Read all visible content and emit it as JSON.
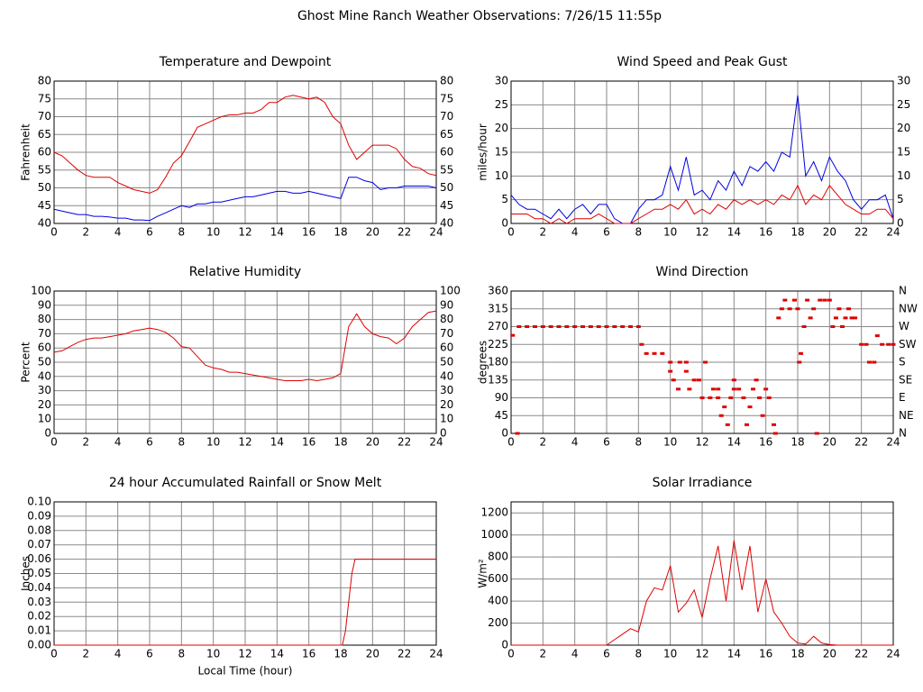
{
  "title": "Ghost Mine Ranch Weather Observations: 7/26/15 11:55p",
  "chart_data": [
    {
      "type": "line",
      "title": "Temperature and Dewpoint",
      "ylabel": "Fahrenheit",
      "xlim": [
        0,
        24
      ],
      "xticks": [
        0,
        2,
        4,
        6,
        8,
        10,
        12,
        14,
        16,
        18,
        20,
        22,
        24
      ],
      "ylim": [
        40,
        80
      ],
      "yticks": [
        40,
        45,
        50,
        55,
        60,
        65,
        70,
        75,
        80
      ],
      "right_axis": true,
      "grid": true,
      "x": [
        0,
        0.5,
        1,
        1.5,
        2,
        2.5,
        3,
        3.5,
        4,
        4.5,
        5,
        5.5,
        6,
        6.5,
        7,
        7.5,
        8,
        8.5,
        9,
        9.5,
        10,
        10.5,
        11,
        11.5,
        12,
        12.5,
        13,
        13.5,
        14,
        14.5,
        15,
        15.5,
        16,
        16.5,
        17,
        17.5,
        18,
        18.5,
        19,
        19.5,
        20,
        20.5,
        21,
        21.5,
        22,
        22.5,
        23,
        23.5,
        24
      ],
      "series": [
        {
          "color": "#e00000",
          "values": [
            60,
            59,
            57,
            55,
            53.5,
            53,
            53,
            53,
            51.5,
            50.5,
            49.5,
            49,
            48.5,
            49.5,
            53,
            57,
            59,
            63,
            67,
            68,
            69,
            70,
            70.5,
            70.5,
            71,
            71,
            72,
            74,
            74,
            75.5,
            76,
            75.5,
            75,
            75.5,
            74,
            70,
            68,
            62,
            58,
            60,
            62,
            62,
            62,
            61,
            58,
            56,
            55.5,
            54,
            53.5
          ]
        },
        {
          "color": "#0000e0",
          "values": [
            44,
            43.5,
            43,
            42.5,
            42.5,
            42,
            42,
            41.8,
            41.5,
            41.5,
            41,
            41,
            40.8,
            42,
            43,
            44,
            45,
            44.5,
            45.5,
            45.5,
            46,
            46,
            46.5,
            47,
            47.5,
            47.5,
            48,
            48.5,
            49,
            49,
            48.5,
            48.5,
            49,
            48.5,
            48,
            47.5,
            47,
            53,
            53,
            52,
            51.5,
            49.5,
            50,
            50,
            50.5,
            50.5,
            50.5,
            50.5,
            50
          ]
        }
      ]
    },
    {
      "type": "line",
      "title": "Wind Speed and Peak Gust",
      "ylabel": "miles/hour",
      "xlim": [
        0,
        24
      ],
      "xticks": [
        0,
        2,
        4,
        6,
        8,
        10,
        12,
        14,
        16,
        18,
        20,
        22,
        24
      ],
      "ylim": [
        0,
        30
      ],
      "yticks": [
        0,
        5,
        10,
        15,
        20,
        25,
        30
      ],
      "right_axis": true,
      "grid": true,
      "x": [
        0,
        0.5,
        1,
        1.5,
        2,
        2.5,
        3,
        3.5,
        4,
        4.5,
        5,
        5.5,
        6,
        6.5,
        7,
        7.5,
        8,
        8.5,
        9,
        9.5,
        10,
        10.5,
        11,
        11.5,
        12,
        12.5,
        13,
        13.5,
        14,
        14.5,
        15,
        15.5,
        16,
        16.5,
        17,
        17.5,
        18,
        18.5,
        19,
        19.5,
        20,
        20.5,
        21,
        21.5,
        22,
        22.5,
        23,
        23.5,
        24
      ],
      "series": [
        {
          "color": "#0000e0",
          "values": [
            6,
            4,
            3,
            3,
            2,
            1,
            3,
            1,
            3,
            4,
            2,
            4,
            4,
            1,
            0,
            0,
            3,
            5,
            5,
            6,
            12,
            7,
            14,
            6,
            7,
            5,
            9,
            7,
            11,
            8,
            12,
            11,
            13,
            11,
            15,
            14,
            27,
            10,
            13,
            9,
            14,
            11,
            9,
            5,
            3,
            5,
            5,
            6,
            1
          ]
        },
        {
          "color": "#e00000",
          "values": [
            2,
            2,
            2,
            1,
            1,
            0,
            1,
            0,
            1,
            1,
            1,
            2,
            1,
            0,
            0,
            0,
            1,
            2,
            3,
            3,
            4,
            3,
            5,
            2,
            3,
            2,
            4,
            3,
            5,
            4,
            5,
            4,
            5,
            4,
            6,
            5,
            8,
            4,
            6,
            5,
            8,
            6,
            4,
            3,
            2,
            2,
            3,
            3,
            1
          ]
        }
      ]
    },
    {
      "type": "line",
      "title": "Relative Humidity",
      "ylabel": "Percent",
      "xlim": [
        0,
        24
      ],
      "xticks": [
        0,
        2,
        4,
        6,
        8,
        10,
        12,
        14,
        16,
        18,
        20,
        22,
        24
      ],
      "ylim": [
        0,
        100
      ],
      "yticks": [
        0,
        10,
        20,
        30,
        40,
        50,
        60,
        70,
        80,
        90,
        100
      ],
      "right_axis": true,
      "grid": true,
      "x": [
        0,
        0.5,
        1,
        1.5,
        2,
        2.5,
        3,
        3.5,
        4,
        4.5,
        5,
        5.5,
        6,
        6.5,
        7,
        7.5,
        8,
        8.5,
        9,
        9.5,
        10,
        10.5,
        11,
        11.5,
        12,
        12.5,
        13,
        13.5,
        14,
        14.5,
        15,
        15.5,
        16,
        16.5,
        17,
        17.5,
        18,
        18.5,
        19,
        19.5,
        20,
        20.5,
        21,
        21.5,
        22,
        22.5,
        23,
        23.5,
        24
      ],
      "series": [
        {
          "color": "#e00000",
          "values": [
            57,
            58,
            61,
            64,
            66,
            67,
            67,
            68,
            69,
            70,
            72,
            73,
            74,
            73,
            71,
            67,
            61,
            60,
            54,
            48,
            46,
            45,
            43,
            43,
            42,
            41,
            40,
            39,
            38,
            37,
            37,
            37,
            38,
            37,
            38,
            39,
            42,
            75,
            84,
            75,
            70,
            68,
            67,
            63,
            67,
            75,
            80,
            85,
            86
          ]
        }
      ]
    },
    {
      "type": "scatter",
      "title": "Wind Direction",
      "ylabel": "degrees",
      "color": "#e00000",
      "xlim": [
        0,
        24
      ],
      "xticks": [
        0,
        2,
        4,
        6,
        8,
        10,
        12,
        14,
        16,
        18,
        20,
        22,
        24
      ],
      "ylim": [
        0,
        360
      ],
      "yticks": [
        0,
        45,
        90,
        135,
        180,
        225,
        270,
        315,
        360
      ],
      "grid": true,
      "y2lim": [
        0,
        360
      ],
      "y2ticks": [
        {
          "value": 0,
          "label": "N"
        },
        {
          "value": 45,
          "label": "NE"
        },
        {
          "value": 90,
          "label": "E"
        },
        {
          "value": 135,
          "label": "SE"
        },
        {
          "value": 180,
          "label": "S"
        },
        {
          "value": 225,
          "label": "SW"
        },
        {
          "value": 270,
          "label": "W"
        },
        {
          "value": 315,
          "label": "NW"
        },
        {
          "value": 360,
          "label": "N"
        }
      ],
      "x": [
        0.1,
        0.4,
        0.5,
        1,
        1.5,
        2,
        2.5,
        3,
        3.5,
        4,
        4.5,
        5,
        5.5,
        6,
        6.5,
        7,
        7.5,
        8,
        8.2,
        8.5,
        9,
        9.5,
        10,
        10,
        10.2,
        10.5,
        10.6,
        11,
        11,
        11.2,
        11.5,
        11.8,
        12,
        12.2,
        12.5,
        12.7,
        13,
        13,
        13.2,
        13.4,
        13.6,
        13.8,
        14,
        14,
        14.3,
        14.6,
        14.8,
        15,
        15.2,
        15.4,
        15.6,
        15.8,
        16,
        16.2,
        16.5,
        16.6,
        16.8,
        17,
        17.2,
        17.5,
        17.8,
        18,
        18.1,
        18.2,
        18.4,
        18.6,
        18.8,
        19,
        19.2,
        19.4,
        19.7,
        20,
        20.2,
        20.4,
        20.6,
        20.8,
        21,
        21.2,
        21.4,
        21.6,
        22,
        22.3,
        22.5,
        22.8,
        23,
        23.3,
        23.7,
        24
      ],
      "values": [
        248,
        0,
        270,
        270,
        270,
        270,
        270,
        270,
        270,
        270,
        270,
        270,
        270,
        270,
        270,
        270,
        270,
        270,
        225,
        202,
        202,
        202,
        157,
        180,
        135,
        112,
        180,
        180,
        157,
        112,
        135,
        135,
        90,
        180,
        90,
        112,
        90,
        112,
        45,
        67,
        22,
        90,
        112,
        135,
        112,
        90,
        22,
        67,
        112,
        135,
        90,
        45,
        112,
        90,
        22,
        0,
        292,
        315,
        337,
        315,
        337,
        315,
        180,
        202,
        270,
        337,
        292,
        315,
        0,
        337,
        337,
        337,
        270,
        292,
        315,
        270,
        292,
        315,
        292,
        292,
        225,
        225,
        180,
        180,
        247,
        225,
        225,
        225
      ]
    },
    {
      "type": "line",
      "title": "24 hour Accumulated Rainfall or Snow Melt",
      "ylabel": "Inches",
      "xlabel": "Local Time (hour)",
      "xlim": [
        0,
        24
      ],
      "xticks": [
        0,
        2,
        4,
        6,
        8,
        10,
        12,
        14,
        16,
        18,
        20,
        22,
        24
      ],
      "ylim": [
        0,
        0.1
      ],
      "yticks": [
        {
          "value": 0,
          "label": "0.00"
        },
        {
          "value": 0.01,
          "label": "0.01"
        },
        {
          "value": 0.02,
          "label": "0.02"
        },
        {
          "value": 0.03,
          "label": "0.03"
        },
        {
          "value": 0.04,
          "label": "0.04"
        },
        {
          "value": 0.05,
          "label": "0.05"
        },
        {
          "value": 0.06,
          "label": "0.06"
        },
        {
          "value": 0.07,
          "label": "0.07"
        },
        {
          "value": 0.08,
          "label": "0.08"
        },
        {
          "value": 0.09,
          "label": "0.09"
        },
        {
          "value": 0.1,
          "label": "0.10"
        }
      ],
      "grid": true,
      "x": [
        0,
        18.1,
        18.3,
        18.5,
        18.7,
        18.9,
        24
      ],
      "series": [
        {
          "color": "#e00000",
          "values": [
            0,
            0,
            0.01,
            0.03,
            0.05,
            0.06,
            0.06
          ]
        }
      ]
    },
    {
      "type": "line",
      "title": "Solar Irradiance",
      "ylabel": "W/m²",
      "xlim": [
        0,
        24
      ],
      "xticks": [
        0,
        2,
        4,
        6,
        8,
        10,
        12,
        14,
        16,
        18,
        20,
        22,
        24
      ],
      "ylim": [
        0,
        1300
      ],
      "yticks": [
        0,
        200,
        400,
        600,
        800,
        1000,
        1200
      ],
      "grid": true,
      "x": [
        0,
        0.5,
        1,
        1.5,
        2,
        2.5,
        3,
        3.5,
        4,
        4.5,
        5,
        5.5,
        6,
        6.5,
        7,
        7.5,
        8,
        8.5,
        9,
        9.5,
        10,
        10.5,
        11,
        11.5,
        12,
        12.5,
        13,
        13.5,
        14,
        14.5,
        15,
        15.5,
        16,
        16.5,
        17,
        17.5,
        18,
        18.5,
        19,
        19.5,
        20,
        20.5,
        21,
        21.5,
        22,
        22.5,
        23,
        23.5,
        24
      ],
      "series": [
        {
          "color": "#e00000",
          "values": [
            0,
            0,
            0,
            0,
            0,
            0,
            0,
            0,
            0,
            0,
            0,
            0,
            0,
            50,
            100,
            150,
            120,
            400,
            520,
            500,
            720,
            300,
            380,
            500,
            250,
            600,
            900,
            400,
            950,
            500,
            900,
            300,
            600,
            300,
            200,
            80,
            20,
            10,
            80,
            20,
            5,
            0,
            0,
            0,
            0,
            0,
            0,
            0,
            0
          ]
        }
      ]
    }
  ]
}
